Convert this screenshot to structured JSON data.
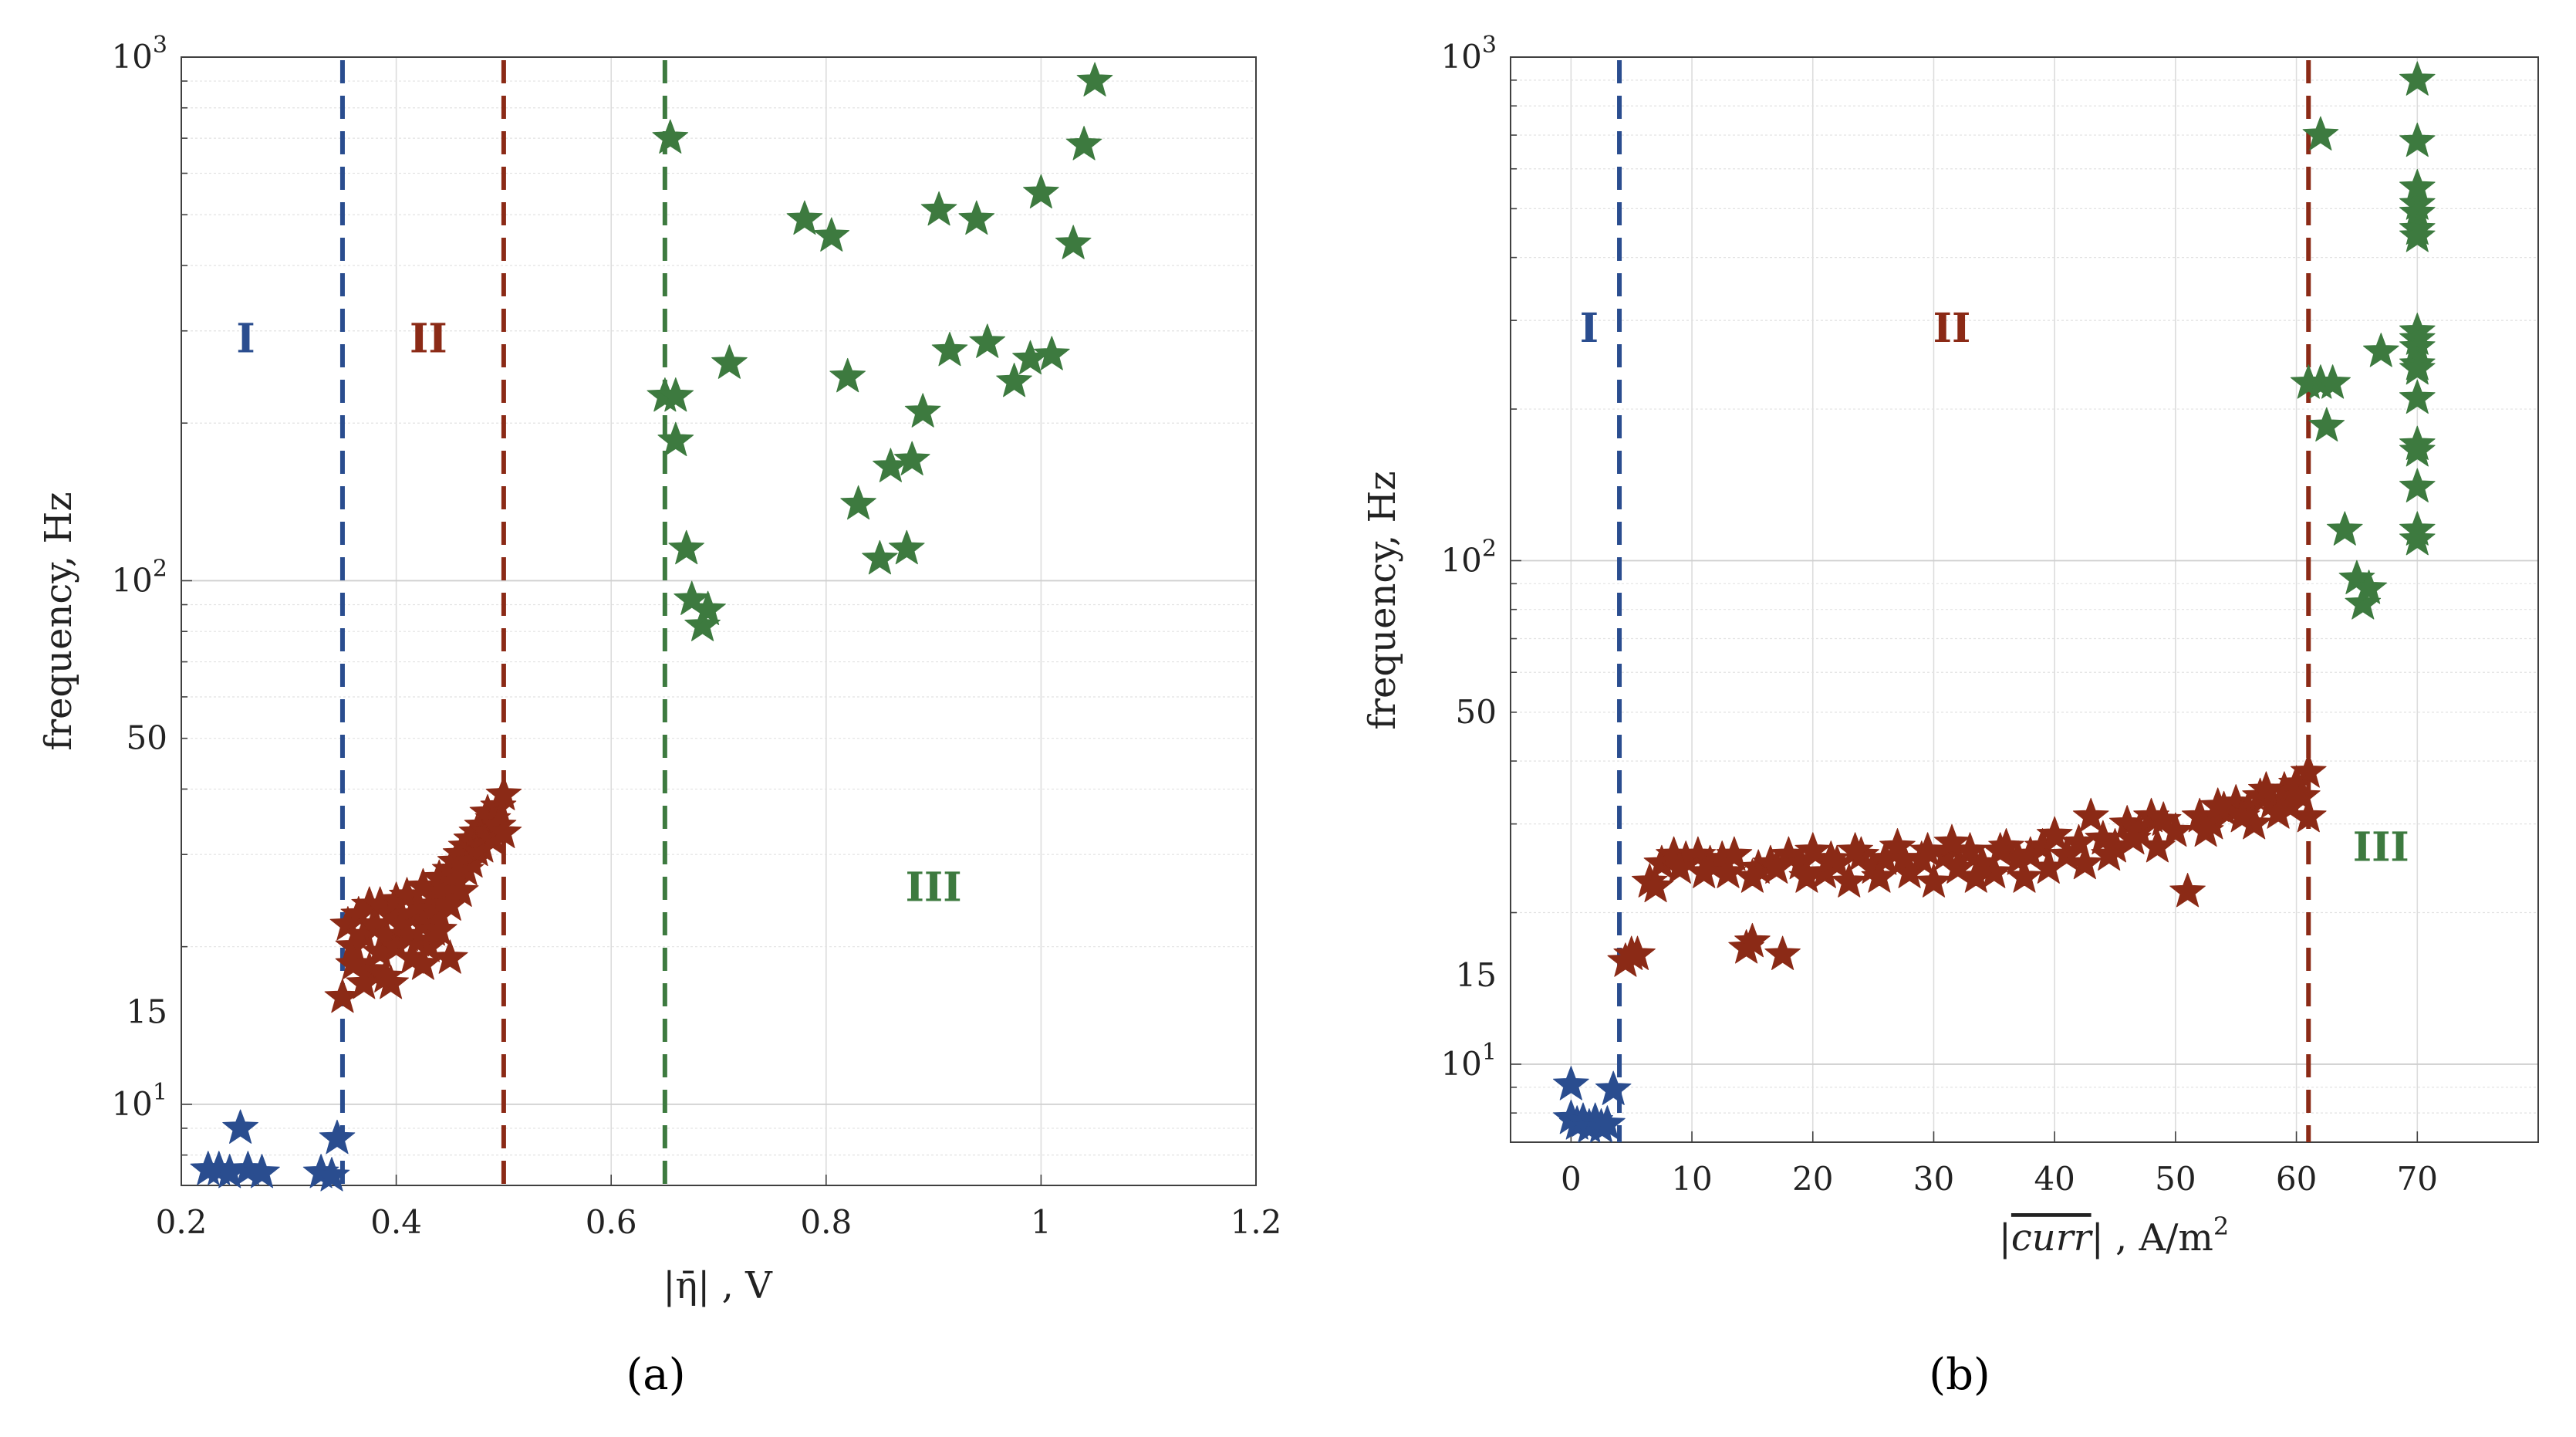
{
  "colors": {
    "region1": "#2a4d8f",
    "region2": "#8b2a16",
    "region3": "#3d7a3f",
    "grid": "#dcdcdc",
    "axis": "#404040",
    "text": "#222222"
  },
  "chart_data": [
    {
      "type": "scatter",
      "panel_label": "(a)",
      "xlabel": "|η̄| , V",
      "ylabel": "frequency, Hz",
      "xscale": "linear",
      "yscale": "log",
      "xlim": [
        0.2,
        1.2
      ],
      "ylim": [
        7,
        1000
      ],
      "xticks": [
        0.2,
        0.4,
        0.6,
        0.8,
        1,
        1.2
      ],
      "xtick_labels": [
        "0.2",
        "0.4",
        "0.6",
        "0.8",
        "1",
        "1.2"
      ],
      "yticks": [
        {
          "value": 10,
          "base": "10",
          "exp": "1"
        },
        {
          "value": 15,
          "label": "15"
        },
        {
          "value": 50,
          "label": "50"
        },
        {
          "value": 100,
          "base": "10",
          "exp": "2"
        },
        {
          "value": 1000,
          "base": "10",
          "exp": "3"
        }
      ],
      "grid": true,
      "boundaries": [
        {
          "x": 0.35,
          "color": "#2a4d8f"
        },
        {
          "x": 0.5,
          "color": "#8b2a16"
        },
        {
          "x": 0.65,
          "color": "#3d7a3f"
        }
      ],
      "region_labels": [
        {
          "text": "I",
          "x": 0.26,
          "y": 290,
          "color": "#2a4d8f"
        },
        {
          "text": "II",
          "x": 0.43,
          "y": 290,
          "color": "#8b2a16"
        },
        {
          "text": "III",
          "x": 0.9,
          "y": 26,
          "color": "#3d7a3f"
        }
      ],
      "series": [
        {
          "name": "I",
          "color": "#2a4d8f",
          "points": [
            [
              0.225,
              7.5
            ],
            [
              0.235,
              7.5
            ],
            [
              0.245,
              7.4
            ],
            [
              0.255,
              9.0
            ],
            [
              0.262,
              7.5
            ],
            [
              0.275,
              7.4
            ],
            [
              0.33,
              7.4
            ],
            [
              0.34,
              7.3
            ],
            [
              0.345,
              8.6
            ]
          ]
        },
        {
          "name": "II",
          "color": "#8b2a16",
          "points": [
            [
              0.35,
              16
            ],
            [
              0.355,
              22
            ],
            [
              0.36,
              20
            ],
            [
              0.365,
              23
            ],
            [
              0.37,
              21
            ],
            [
              0.375,
              24
            ],
            [
              0.375,
              18
            ],
            [
              0.38,
              22
            ],
            [
              0.385,
              19.5
            ],
            [
              0.385,
              24
            ],
            [
              0.39,
              21
            ],
            [
              0.395,
              23
            ],
            [
              0.395,
              17
            ],
            [
              0.4,
              20
            ],
            [
              0.4,
              24.5
            ],
            [
              0.405,
              22
            ],
            [
              0.41,
              25
            ],
            [
              0.41,
              21
            ],
            [
              0.415,
              19
            ],
            [
              0.415,
              23
            ],
            [
              0.42,
              24
            ],
            [
              0.42,
              20.5
            ],
            [
              0.425,
              22
            ],
            [
              0.425,
              26
            ],
            [
              0.43,
              23.5
            ],
            [
              0.43,
              20
            ],
            [
              0.435,
              25
            ],
            [
              0.435,
              21.5
            ],
            [
              0.44,
              27
            ],
            [
              0.44,
              23
            ],
            [
              0.445,
              24.5
            ],
            [
              0.445,
              26
            ],
            [
              0.45,
              28
            ],
            [
              0.45,
              24
            ],
            [
              0.455,
              29
            ],
            [
              0.455,
              26.5
            ],
            [
              0.46,
              30
            ],
            [
              0.46,
              25.5
            ],
            [
              0.465,
              31
            ],
            [
              0.465,
              28
            ],
            [
              0.47,
              32
            ],
            [
              0.47,
              29
            ],
            [
              0.475,
              30.5
            ],
            [
              0.475,
              33
            ],
            [
              0.48,
              34
            ],
            [
              0.48,
              31
            ],
            [
              0.485,
              33
            ],
            [
              0.485,
              36
            ],
            [
              0.49,
              35
            ],
            [
              0.49,
              32
            ],
            [
              0.495,
              37
            ],
            [
              0.495,
              34
            ],
            [
              0.5,
              39
            ],
            [
              0.5,
              33
            ],
            [
              0.45,
              19
            ],
            [
              0.39,
              17.5
            ],
            [
              0.36,
              18.5
            ],
            [
              0.37,
              17
            ],
            [
              0.425,
              18.5
            ],
            [
              0.44,
              21.5
            ]
          ]
        },
        {
          "name": "III",
          "color": "#3d7a3f",
          "points": [
            [
              0.655,
              700
            ],
            [
              0.65,
              225
            ],
            [
              0.66,
              225
            ],
            [
              0.66,
              185
            ],
            [
              0.67,
              115
            ],
            [
              0.675,
              92
            ],
            [
              0.685,
              82
            ],
            [
              0.69,
              88
            ],
            [
              0.71,
              260
            ],
            [
              0.78,
              490
            ],
            [
              0.805,
              455
            ],
            [
              0.82,
              245
            ],
            [
              0.83,
              140
            ],
            [
              0.85,
              110
            ],
            [
              0.86,
              165
            ],
            [
              0.875,
              115
            ],
            [
              0.88,
              170
            ],
            [
              0.89,
              210
            ],
            [
              0.905,
              510
            ],
            [
              0.915,
              275
            ],
            [
              0.94,
              490
            ],
            [
              0.95,
              285
            ],
            [
              0.975,
              240
            ],
            [
              0.99,
              265
            ],
            [
              1.0,
              550
            ],
            [
              1.01,
              270
            ],
            [
              1.03,
              440
            ],
            [
              1.04,
              680
            ],
            [
              1.05,
              900
            ]
          ]
        }
      ]
    },
    {
      "type": "scatter",
      "panel_label": "(b)",
      "xlabel": "|curr| , A/m²",
      "xlabel_math": "curr",
      "xlabel_unit": ", A/m",
      "xlabel_unit_exp": "2",
      "ylabel": "frequency, Hz",
      "xscale": "linear",
      "yscale": "log",
      "xlim": [
        -5,
        80
      ],
      "ylim": [
        7,
        1000
      ],
      "xticks": [
        0,
        10,
        20,
        30,
        40,
        50,
        60,
        70
      ],
      "xtick_labels": [
        "0",
        "10",
        "20",
        "30",
        "40",
        "50",
        "60",
        "70"
      ],
      "yticks": [
        {
          "value": 10,
          "base": "10",
          "exp": "1"
        },
        {
          "value": 15,
          "label": "15"
        },
        {
          "value": 50,
          "label": "50"
        },
        {
          "value": 100,
          "base": "10",
          "exp": "2"
        },
        {
          "value": 1000,
          "base": "10",
          "exp": "3"
        }
      ],
      "grid": true,
      "boundaries": [
        {
          "x": 4,
          "color": "#2a4d8f"
        },
        {
          "x": 61,
          "color": "#8b2a16"
        }
      ],
      "region_labels": [
        {
          "text": "I",
          "x": 1.5,
          "y": 290,
          "color": "#2a4d8f"
        },
        {
          "text": "II",
          "x": 31.5,
          "y": 290,
          "color": "#8b2a16"
        },
        {
          "text": "III",
          "x": 67,
          "y": 27,
          "color": "#3d7a3f"
        }
      ],
      "series": [
        {
          "name": "I",
          "color": "#2a4d8f",
          "points": [
            [
              0,
              9.1
            ],
            [
              0,
              7.8
            ],
            [
              0.5,
              7.6
            ],
            [
              1.0,
              7.7
            ],
            [
              1.5,
              7.5
            ],
            [
              2.0,
              7.7
            ],
            [
              2.5,
              7.5
            ],
            [
              3.0,
              7.6
            ],
            [
              3.5,
              8.9
            ]
          ]
        },
        {
          "name": "II",
          "color": "#8b2a16",
          "points": [
            [
              4.5,
              16
            ],
            [
              5.5,
              16.5
            ],
            [
              6.5,
              23
            ],
            [
              7.5,
              25
            ],
            [
              8.5,
              26
            ],
            [
              9.5,
              25.5
            ],
            [
              10.5,
              26
            ],
            [
              11.5,
              25
            ],
            [
              12.5,
              25.5
            ],
            [
              13.5,
              26
            ],
            [
              14.5,
              17
            ],
            [
              15,
              17.5
            ],
            [
              15.5,
              24.5
            ],
            [
              16.5,
              25
            ],
            [
              17.5,
              16.5
            ],
            [
              18,
              26
            ],
            [
              19,
              25
            ],
            [
              20,
              26.5
            ],
            [
              21,
              24
            ],
            [
              22,
              25
            ],
            [
              23,
              23
            ],
            [
              24,
              26
            ],
            [
              25,
              24.5
            ],
            [
              26,
              25.5
            ],
            [
              27,
              27
            ],
            [
              28,
              24
            ],
            [
              29,
              25.5
            ],
            [
              30,
              23
            ],
            [
              31,
              26
            ],
            [
              32,
              24.5
            ],
            [
              33,
              26.5
            ],
            [
              34,
              25
            ],
            [
              35,
              24
            ],
            [
              36,
              27
            ],
            [
              37,
              25.5
            ],
            [
              38,
              26
            ],
            [
              39,
              27
            ],
            [
              40,
              28.5
            ],
            [
              41,
              26
            ],
            [
              42,
              27.5
            ],
            [
              43,
              31
            ],
            [
              44,
              28
            ],
            [
              45,
              27
            ],
            [
              46,
              30
            ],
            [
              47,
              29
            ],
            [
              48,
              31
            ],
            [
              49,
              30.5
            ],
            [
              50,
              29
            ],
            [
              51,
              22
            ],
            [
              52,
              31
            ],
            [
              53,
              30
            ],
            [
              54,
              32
            ],
            [
              55,
              33
            ],
            [
              56,
              32
            ],
            [
              57,
              34
            ],
            [
              58,
              33
            ],
            [
              59,
              35
            ],
            [
              60,
              36
            ],
            [
              61,
              38
            ],
            [
              60.5,
              34
            ],
            [
              61,
              31
            ],
            [
              59.5,
              32.5
            ],
            [
              58.5,
              31.5
            ],
            [
              57.5,
              35
            ],
            [
              56.5,
              30
            ],
            [
              55.5,
              31
            ],
            [
              53.5,
              32.5
            ],
            [
              52.5,
              29
            ],
            [
              48.5,
              27
            ],
            [
              46.5,
              28
            ],
            [
              44.5,
              26
            ],
            [
              42.5,
              25
            ],
            [
              39.5,
              24.5
            ],
            [
              37.5,
              23.5
            ],
            [
              35.5,
              26.5
            ],
            [
              33.5,
              23.5
            ],
            [
              31.5,
              27.5
            ],
            [
              29.5,
              26.5
            ],
            [
              27.5,
              25.5
            ],
            [
              25.5,
              23.5
            ],
            [
              23.5,
              26.5
            ],
            [
              21.5,
              25.5
            ],
            [
              19.5,
              23.5
            ],
            [
              17,
              24.5
            ],
            [
              15,
              23.5
            ],
            [
              13,
              24
            ],
            [
              11,
              24
            ],
            [
              9,
              24.5
            ],
            [
              7,
              22.5
            ],
            [
              5,
              16.5
            ]
          ]
        },
        {
          "name": "III",
          "color": "#3d7a3f",
          "points": [
            [
              62,
              700
            ],
            [
              61,
              225
            ],
            [
              62,
              225
            ],
            [
              63,
              225
            ],
            [
              62.5,
              185
            ],
            [
              64,
              115
            ],
            [
              65,
              92
            ],
            [
              65.5,
              82
            ],
            [
              66,
              88
            ],
            [
              67,
              260
            ],
            [
              70,
              900
            ],
            [
              70,
              680
            ],
            [
              70,
              550
            ],
            [
              70,
              510
            ],
            [
              70,
              490
            ],
            [
              70,
              455
            ],
            [
              70,
              440
            ],
            [
              70,
              285
            ],
            [
              70,
              275
            ],
            [
              70,
              265
            ],
            [
              70,
              245
            ],
            [
              70,
              240
            ],
            [
              70,
              210
            ],
            [
              70,
              170
            ],
            [
              70,
              165
            ],
            [
              70,
              140
            ],
            [
              70,
              115
            ],
            [
              70,
              110
            ]
          ]
        }
      ]
    }
  ]
}
